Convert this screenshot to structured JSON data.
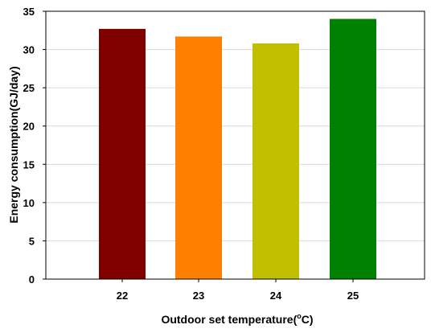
{
  "chart_data": {
    "type": "bar",
    "title": "",
    "xlabel": "Outdoor set temperature(",
    "xlabel_unit_sup": "o",
    "xlabel_unit_end": "C)",
    "ylabel": "Energy consumption(GJ/day)",
    "categories": [
      "22",
      "23",
      "24",
      "25"
    ],
    "values": [
      32.7,
      31.7,
      30.8,
      34.0
    ],
    "colors": [
      "#800000",
      "#ff8000",
      "#c0c000",
      "#008000"
    ],
    "ylim": [
      0,
      35
    ],
    "yticks": [
      0,
      5,
      10,
      15,
      20,
      25,
      30,
      35
    ],
    "grid": true,
    "legend": "none"
  }
}
